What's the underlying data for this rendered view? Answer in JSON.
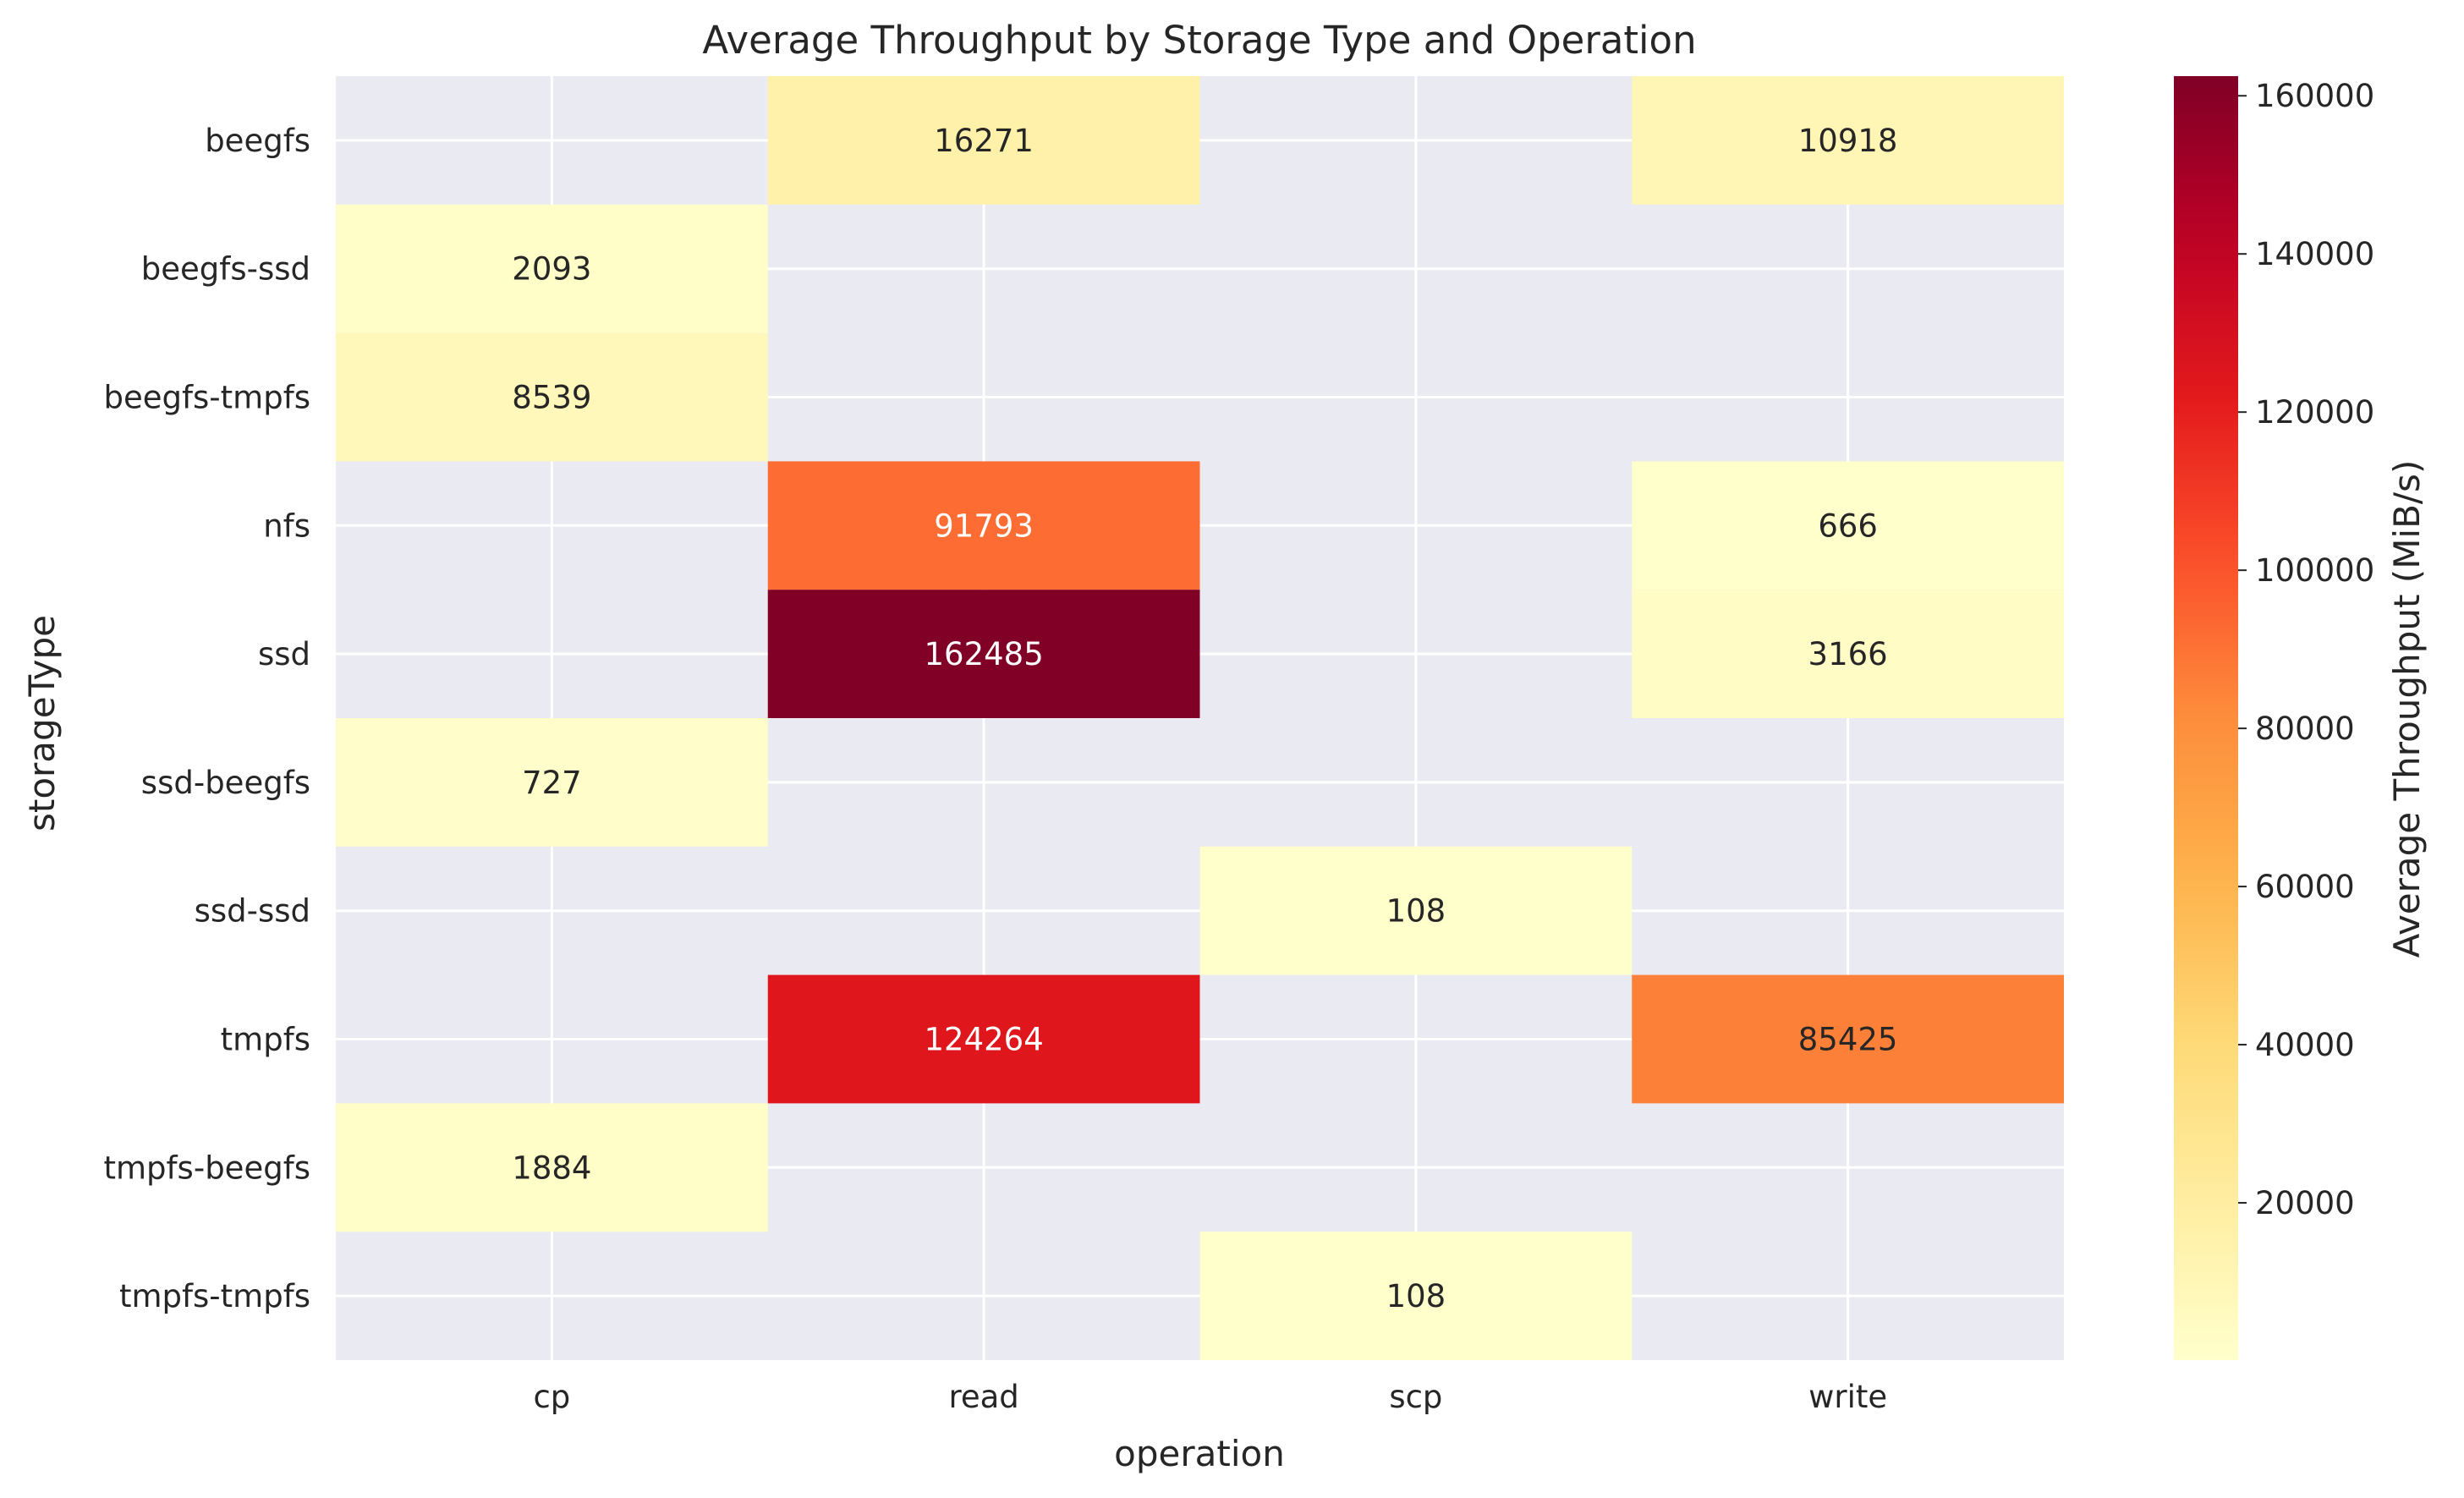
{
  "chart_data": {
    "type": "heatmap",
    "title": "Average Throughput by Storage Type and Operation",
    "xlabel": "operation",
    "ylabel": "storageType",
    "x_categories": [
      "cp",
      "read",
      "scp",
      "write"
    ],
    "y_categories": [
      "beegfs",
      "beegfs-ssd",
      "beegfs-tmpfs",
      "nfs",
      "ssd",
      "ssd-beegfs",
      "ssd-ssd",
      "tmpfs",
      "tmpfs-beegfs",
      "tmpfs-tmpfs"
    ],
    "values": [
      [
        null,
        16271,
        null,
        10918
      ],
      [
        2093,
        null,
        null,
        null
      ],
      [
        8539,
        null,
        null,
        null
      ],
      [
        null,
        91793,
        null,
        666
      ],
      [
        null,
        162485,
        null,
        3166
      ],
      [
        727,
        null,
        null,
        null
      ],
      [
        null,
        null,
        108,
        null
      ],
      [
        null,
        124264,
        null,
        85425
      ],
      [
        1884,
        null,
        null,
        null
      ],
      [
        null,
        null,
        108,
        null
      ]
    ],
    "colorbar": {
      "label": "Average Throughput (MiB/s)",
      "ticks": [
        20000,
        40000,
        60000,
        80000,
        100000,
        120000,
        140000,
        160000
      ],
      "vmin": 108,
      "vmax": 162485,
      "colormap": "YlOrRd"
    },
    "grid": true,
    "background_color": "#eaeaf2",
    "grid_color": "#ffffff"
  }
}
